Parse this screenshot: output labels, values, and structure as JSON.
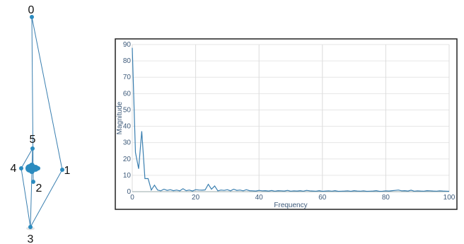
{
  "graph": {
    "nodes": [
      {
        "id": "0",
        "label": "0"
      },
      {
        "id": "1",
        "label": "1"
      },
      {
        "id": "2",
        "label": "2"
      },
      {
        "id": "3",
        "label": "3"
      },
      {
        "id": "4",
        "label": "4"
      },
      {
        "id": "5",
        "label": "5"
      }
    ],
    "edges": [
      [
        "0",
        "1"
      ],
      [
        "0",
        "2"
      ],
      [
        "1",
        "3"
      ],
      [
        "3",
        "4"
      ],
      [
        "4",
        "5"
      ],
      [
        "5",
        "3"
      ]
    ],
    "node_color": "#2b8bbf",
    "edge_color": "#3a7fb0"
  },
  "chart_data": {
    "type": "line",
    "title": "",
    "xlabel": "Frequency",
    "ylabel": "Magnitude",
    "xlim": [
      0,
      100
    ],
    "ylim": [
      0,
      90
    ],
    "x_ticks": [
      0,
      20,
      40,
      60,
      80,
      100
    ],
    "y_ticks": [
      0,
      10,
      20,
      30,
      40,
      50,
      60,
      70,
      80,
      90
    ],
    "grid": true,
    "line_color": "#3a7fb0",
    "series": [
      {
        "x": [
          0,
          1,
          2,
          3,
          4,
          5,
          6,
          7,
          8,
          9,
          10,
          11,
          12,
          13,
          14,
          15,
          16,
          17,
          18,
          19,
          20,
          21,
          22,
          23,
          24,
          25,
          26,
          27,
          28,
          29,
          30,
          31,
          32,
          33,
          34,
          35,
          36,
          37,
          38,
          39,
          40,
          41,
          42,
          43,
          44,
          45,
          46,
          47,
          48,
          49,
          50,
          51,
          52,
          53,
          54,
          55,
          56,
          57,
          58,
          59,
          60,
          61,
          62,
          63,
          64,
          65,
          66,
          67,
          68,
          69,
          70,
          71,
          72,
          73,
          74,
          75,
          76,
          77,
          78,
          79,
          80,
          81,
          82,
          83,
          84,
          85,
          86,
          87,
          88,
          89,
          90,
          91,
          92,
          93,
          94,
          95,
          96,
          97,
          98,
          99,
          100
        ],
        "y": [
          88,
          24,
          14,
          37,
          8,
          8,
          1,
          4,
          1,
          0.5,
          1.5,
          0.8,
          1.2,
          0.6,
          1,
          0.5,
          1.8,
          0.6,
          1,
          0.4,
          1.2,
          1,
          0.9,
          1.1,
          4.5,
          1.5,
          3.5,
          0.5,
          1,
          0.8,
          1.2,
          0.5,
          1.5,
          0.8,
          1,
          0.5,
          1.2,
          0.6,
          0.5,
          0.4,
          0.8,
          0.5,
          0.6,
          0.4,
          0.7,
          0.3,
          0.6,
          0.5,
          0.4,
          0.8,
          0.3,
          0.5,
          0.4,
          0.6,
          0.3,
          0.8,
          0.5,
          0.4,
          0.3,
          0.6,
          0.2,
          0.4,
          0.5,
          0.3,
          0.6,
          0.2,
          0.3,
          0.4,
          0.5,
          0.2,
          0.6,
          0.4,
          0.3,
          0.5,
          0.2,
          0.3,
          0.4,
          0.6,
          0.2,
          0.3,
          0.5,
          0.4,
          0.6,
          0.8,
          1,
          0.5,
          0.6,
          0.4,
          0.9,
          0.3,
          0.5,
          0.4,
          0.3,
          0.6,
          0.5,
          0.4,
          0.3,
          0.5,
          0.4,
          0.3,
          0.2
        ]
      }
    ]
  }
}
